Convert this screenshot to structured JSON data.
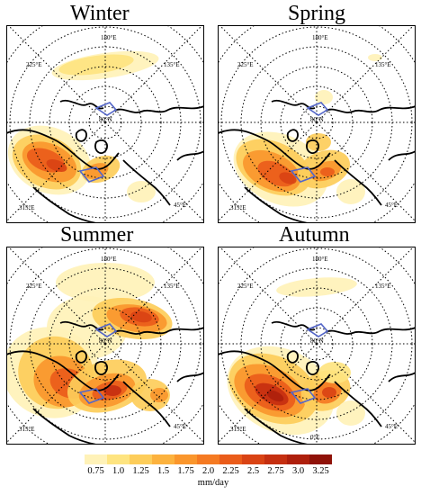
{
  "panels": [
    {
      "title": "Winter"
    },
    {
      "title": "Spring"
    },
    {
      "title": "Summer"
    },
    {
      "title": "Autumn"
    }
  ],
  "grid_labels": {
    "lon_top": "180°E",
    "lon_top_left": "225°E",
    "lon_top_right": "135°E",
    "lon_bottom_left": "315°E",
    "lon_bottom_right": "45°E",
    "lon_bottom": "0°E",
    "lat_inner": "80°N"
  },
  "legend": {
    "ticks": [
      "0.75",
      "1.0",
      "1.25",
      "1.5",
      "1.75",
      "2.0",
      "2.25",
      "2.5",
      "2.75",
      "3.0",
      "3.25"
    ],
    "unit": "mm/day",
    "colors": [
      "#fff2b8",
      "#fee480",
      "#fdcd5a",
      "#fcb23e",
      "#fa962c",
      "#f57a22",
      "#ea5c1a",
      "#d94314",
      "#c52f10",
      "#ae1f0c",
      "#8f1208"
    ]
  },
  "colors": {
    "coast": "#000000",
    "region_outline": "#5466c8",
    "grid": "#000000"
  }
}
